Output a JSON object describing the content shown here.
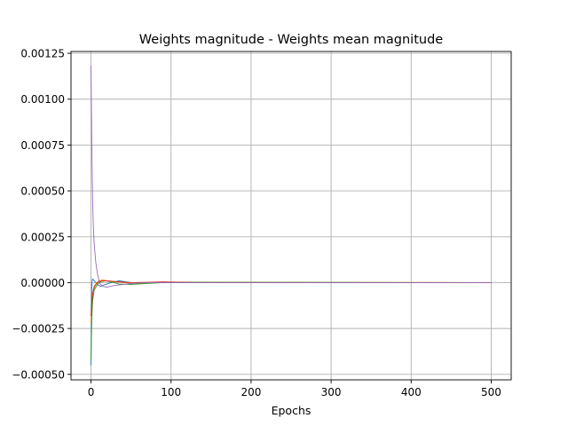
{
  "chart_data": {
    "type": "line",
    "title": "Weights magnitude - Weights mean magnitude",
    "xlabel": "Epochs",
    "ylabel": "",
    "xlim": [
      -25,
      525
    ],
    "ylim": [
      -0.00053,
      0.00126
    ],
    "xticks": [
      0,
      100,
      200,
      300,
      400,
      500
    ],
    "xtick_labels": [
      "0",
      "100",
      "200",
      "300",
      "400",
      "500"
    ],
    "yticks": [
      -0.0005,
      -0.00025,
      0.0,
      0.00025,
      0.0005,
      0.00075,
      0.001,
      0.00125
    ],
    "ytick_labels": [
      "−0.00050",
      "−0.00025",
      "0.00000",
      "0.00025",
      "0.00050",
      "0.00075",
      "0.00100",
      "0.00125"
    ],
    "grid": true,
    "series": [
      {
        "color": "#1f77b4",
        "x": [
          0,
          1,
          2,
          4,
          8,
          12,
          18,
          25,
          35,
          50,
          70,
          100,
          150,
          500
        ],
        "y": [
          -0.00045,
          0.0,
          2e-05,
          1e-05,
          -1e-05,
          -2e-05,
          -1e-05,
          0.0,
          1e-05,
          0.0,
          0.0,
          0.0,
          0.0,
          0.0
        ]
      },
      {
        "color": "#ff7f0e",
        "x": [
          0,
          1,
          2,
          4,
          7,
          10,
          15,
          20,
          30,
          40,
          60,
          80,
          100,
          500
        ],
        "y": [
          -0.00022,
          -0.00015,
          -9e-05,
          -3e-05,
          0.0,
          1e-05,
          1.5e-05,
          1e-05,
          5e-06,
          0.0,
          -5e-06,
          0.0,
          3e-06,
          0.0
        ]
      },
      {
        "color": "#2ca02c",
        "x": [
          0,
          1,
          2,
          4,
          8,
          12,
          18,
          25,
          35,
          50,
          70,
          90,
          110,
          500
        ],
        "y": [
          -0.00042,
          -0.0002,
          -0.0001,
          -4e-05,
          -1e-05,
          5e-06,
          1e-05,
          5e-06,
          -8e-06,
          -1e-05,
          -5e-06,
          0.0,
          2e-06,
          0.0
        ]
      },
      {
        "color": "#d62728",
        "x": [
          0,
          1,
          2,
          4,
          8,
          12,
          18,
          25,
          35,
          50,
          70,
          90,
          110,
          130,
          500
        ],
        "y": [
          -0.00018,
          -0.00012,
          -6e-05,
          -2e-05,
          0.0,
          8e-06,
          1e-05,
          8e-06,
          4e-06,
          0.0,
          2e-06,
          4e-06,
          2e-06,
          0.0,
          0.0
        ]
      },
      {
        "color": "#9467bd",
        "x": [
          0,
          1,
          2,
          3,
          4,
          6,
          8,
          10,
          12,
          15,
          20,
          25,
          30,
          40,
          50,
          70,
          100,
          500
        ],
        "y": [
          0.00118,
          0.00075,
          0.00045,
          0.0003,
          0.00021,
          0.00011,
          5e-05,
          1e-05,
          -1e-05,
          -2e-05,
          -2.5e-05,
          -2e-05,
          -1.5e-05,
          -1e-05,
          -5e-06,
          0.0,
          0.0,
          0.0
        ]
      }
    ]
  }
}
